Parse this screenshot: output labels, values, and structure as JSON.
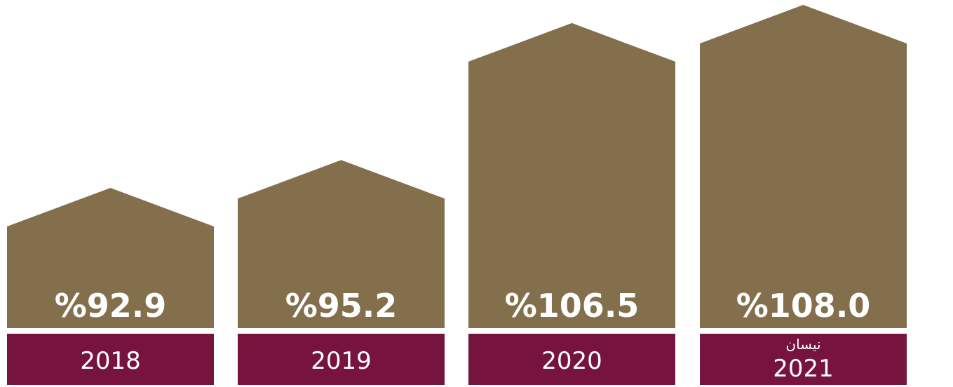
{
  "colors": {
    "bar": "#836f4c",
    "year_box": "#76133f",
    "divider": "#ffffff",
    "text": "#ffffff"
  },
  "chart_data": {
    "type": "bar",
    "shape": "house-arrow",
    "categories": [
      "2018",
      "2019",
      "2020",
      "2021"
    ],
    "category_notes": [
      "",
      "",
      "",
      "نيسان"
    ],
    "values": [
      92.9,
      95.2,
      106.5,
      108.0
    ],
    "value_labels": [
      "%92.9",
      "%95.2",
      "%106.5",
      "%108.0"
    ],
    "title": "",
    "xlabel": "",
    "ylabel": "",
    "ylim": [
      80,
      110
    ],
    "grid": false,
    "legend": "none"
  }
}
